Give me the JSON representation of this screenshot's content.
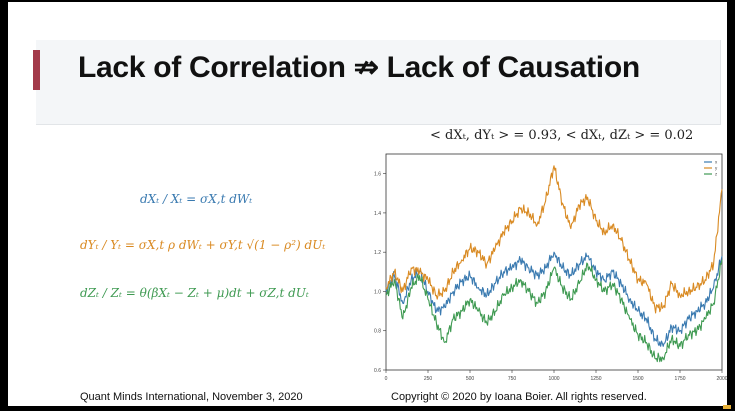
{
  "slide": {
    "title": "Lack of Correlation ⇏ Lack of Causation",
    "equations": {
      "eq1": "dXₜ / Xₜ = σX,t dWₜ",
      "eq2": "dYₜ / Yₜ = σX,t ρ dWₜ + σY,t √(1 − ρ²) dUₜ",
      "eq3": "dZₜ / Zₜ = θ(βXₜ − Zₜ + μ)dt + σZ,t dUₜ"
    },
    "chart_caption": "< dXₜ, dYₜ > = 0.93,  < dXₜ, dZₜ > = 0.02",
    "footer_left": "Quant Minds International, November 3, 2020",
    "footer_right": "Copyright © 2020 by Ioana Boier. All rights reserved."
  },
  "colors": {
    "accent": "#a33a4a",
    "blue": "#3a7ab0",
    "orange": "#d98a22",
    "green": "#3f9a52"
  },
  "chart_data": {
    "type": "line",
    "title": "",
    "xlabel": "",
    "ylabel": "",
    "xlim": [
      0,
      2000
    ],
    "ylim": [
      0.6,
      1.7
    ],
    "x_ticks": [
      "0",
      "250",
      "500",
      "750",
      "1000",
      "1250",
      "1500",
      "1750",
      "2000"
    ],
    "y_ticks": [
      "0.6",
      "0.8",
      "1.0",
      "1.2",
      "1.4",
      "1.6"
    ],
    "legend_position": "top-right",
    "legend": [
      "x",
      "y",
      "z"
    ],
    "grid": true,
    "x": [
      0,
      50,
      100,
      150,
      200,
      250,
      300,
      350,
      400,
      450,
      500,
      550,
      600,
      650,
      700,
      750,
      800,
      850,
      900,
      950,
      1000,
      1050,
      1100,
      1150,
      1200,
      1250,
      1300,
      1350,
      1400,
      1450,
      1500,
      1550,
      1600,
      1650,
      1700,
      1750,
      1800,
      1850,
      1900,
      1950,
      2000
    ],
    "series": [
      {
        "color": "#3a7ab0",
        "values": [
          1.0,
          1.08,
          0.94,
          1.06,
          1.1,
          1.0,
          0.9,
          0.92,
          1.0,
          1.05,
          1.08,
          1.02,
          0.98,
          1.04,
          1.1,
          1.12,
          1.16,
          1.12,
          1.08,
          1.12,
          1.2,
          1.12,
          1.08,
          1.14,
          1.18,
          1.1,
          1.06,
          1.1,
          1.04,
          0.96,
          0.9,
          0.86,
          0.76,
          0.72,
          0.82,
          0.8,
          0.86,
          0.9,
          0.94,
          1.02,
          1.18
        ]
      },
      {
        "color": "#d98a22",
        "values": [
          1.02,
          1.1,
          1.0,
          1.12,
          1.1,
          1.06,
          0.98,
          1.0,
          1.1,
          1.16,
          1.22,
          1.2,
          1.14,
          1.22,
          1.3,
          1.36,
          1.42,
          1.4,
          1.34,
          1.46,
          1.64,
          1.45,
          1.32,
          1.44,
          1.48,
          1.36,
          1.3,
          1.34,
          1.26,
          1.16,
          1.06,
          1.04,
          0.92,
          0.92,
          1.04,
          0.98,
          1.0,
          1.02,
          1.06,
          1.14,
          1.52
        ]
      },
      {
        "color": "#3f9a52",
        "values": [
          0.98,
          1.06,
          0.86,
          1.02,
          1.08,
          0.96,
          0.84,
          0.74,
          0.86,
          0.9,
          0.96,
          0.9,
          0.84,
          0.9,
          0.98,
          1.02,
          1.06,
          1.0,
          0.94,
          1.0,
          1.12,
          1.02,
          0.96,
          1.04,
          1.14,
          1.06,
          1.0,
          1.04,
          0.96,
          0.86,
          0.78,
          0.74,
          0.66,
          0.66,
          0.76,
          0.72,
          0.78,
          0.8,
          0.86,
          0.94,
          1.16
        ]
      }
    ]
  }
}
